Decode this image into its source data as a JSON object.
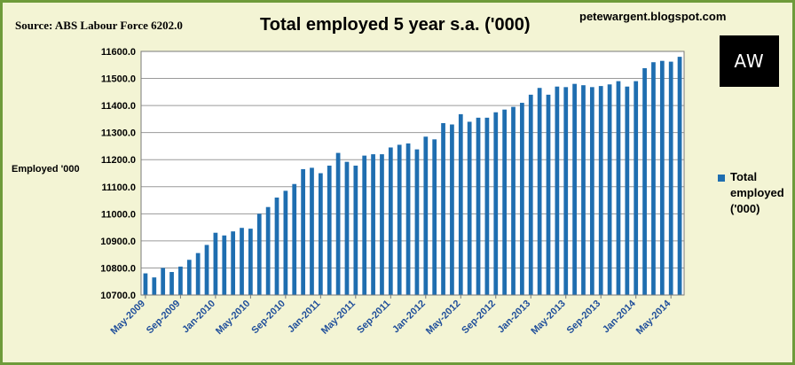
{
  "header": {
    "source": "Source: ABS Labour Force 6202.0",
    "blog": "petewargent.blogspot.com",
    "logo_text": "AW"
  },
  "colors": {
    "bar": "#1f6eb0",
    "plot_bg": "#ffffff",
    "frame": "#6e9b3a",
    "background": "#f3f4d4"
  },
  "chart_data": {
    "type": "bar",
    "title": "Total employed 5 year s.a. ('000)",
    "ylabel": "Employed '000",
    "xlabel": "",
    "ylim": [
      10700,
      11600
    ],
    "y_ticks": [
      "10700.0",
      "10800.0",
      "10900.0",
      "11000.0",
      "11100.0",
      "11200.0",
      "11300.0",
      "11400.0",
      "11500.0",
      "11600.0"
    ],
    "x_tick_labels": [
      "May-2009",
      "Sep-2009",
      "Jan-2010",
      "May-2010",
      "Sep-2010",
      "Jan-2011",
      "May-2011",
      "Sep-2011",
      "Jan-2012",
      "May-2012",
      "Sep-2012",
      "Jan-2013",
      "May-2013",
      "Sep-2013",
      "Jan-2014",
      "May-2014"
    ],
    "grid": true,
    "legend_position": "right",
    "series": [
      {
        "name": "Total employed ('000)",
        "values": [
          10780,
          10765,
          10800,
          10785,
          10805,
          10830,
          10855,
          10885,
          10930,
          10920,
          10935,
          10948,
          10945,
          11000,
          11025,
          11060,
          11085,
          11110,
          11165,
          11170,
          11150,
          11178,
          11225,
          11192,
          11178,
          11215,
          11220,
          11220,
          11245,
          11255,
          11260,
          11238,
          11285,
          11275,
          11335,
          11330,
          11368,
          11340,
          11355,
          11355,
          11375,
          11385,
          11395,
          11410,
          11440,
          11465,
          11440,
          11470,
          11468,
          11480,
          11475,
          11468,
          11472,
          11478,
          11490,
          11470,
          11490,
          11538,
          11560,
          11565,
          11562,
          11580
        ]
      }
    ]
  }
}
